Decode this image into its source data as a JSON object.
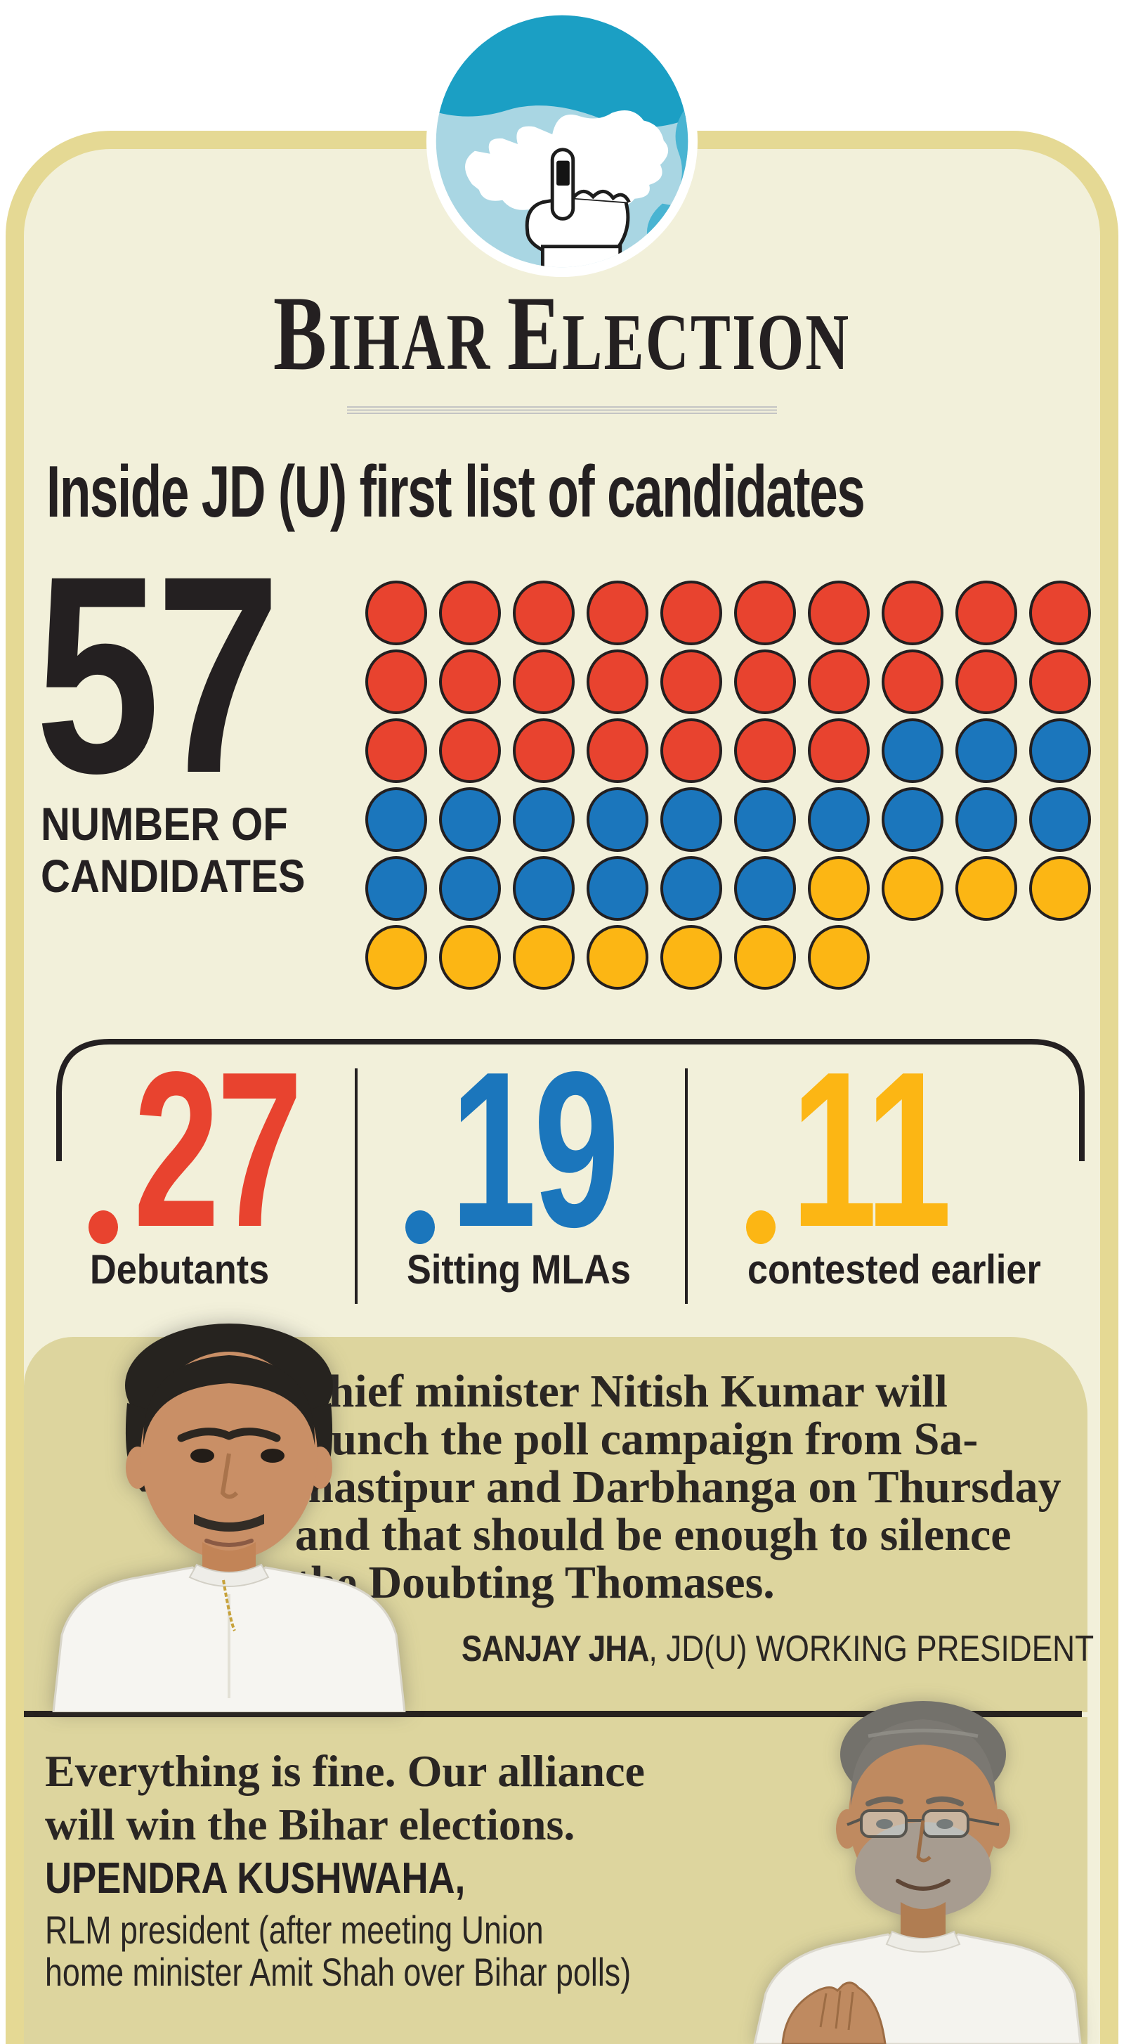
{
  "masthead": {
    "parts": [
      "B",
      "IHAR",
      "E",
      "LECTION"
    ],
    "full_title": "BIHAR ELECTION"
  },
  "headline": {
    "text": "Inside JD (U) first list of candidates"
  },
  "total": {
    "value": "57",
    "label_lines": [
      "NUMBER OF",
      "CANDIDATES"
    ]
  },
  "dot_matrix": {
    "palette": {
      "R": "#e8432f",
      "B": "#1b76bc",
      "Y": "#fcb614"
    },
    "outline": "#231f20",
    "rows": [
      "RRRRRRRRRR",
      "RRRRRRRRRR",
      "RRRRRRRBBB",
      "BBBBBBBBBB",
      "BBBBBBYYYY",
      "YYYYYYY"
    ]
  },
  "breakdown": {
    "items": [
      {
        "value": "27",
        "label": "Debutants",
        "color": "#e8432f"
      },
      {
        "value": "19",
        "label": "Sitting MLAs",
        "color": "#1b76bc"
      },
      {
        "value": "11",
        "label": "contested earlier",
        "color": "#fcb614"
      }
    ]
  },
  "quote1": {
    "lines": [
      "Chief minister Nitish Kumar will",
      "launch the poll campaign from Sa-",
      "mastipur and Darbhanga on Thursday",
      "and that should be enough to silence",
      "the Doubting Thomases."
    ],
    "name": "SANJAY JHA",
    "role": ", JD(U) WORKING PRESIDENT"
  },
  "quote2": {
    "lines": [
      "Everything is fine. Our alliance",
      "will win the Bihar elections."
    ],
    "name": "UPENDRA KUSHWAHA,",
    "role_lines": [
      "RLM president (after meeting Union",
      "home minister Amit Shah over Bihar polls)"
    ]
  },
  "colors": {
    "card_border": "#e5d994",
    "card_background": "#f2f0da",
    "quote_box": "#ddd59e",
    "text_dark": "#242021",
    "red": "#e8432f",
    "blue": "#1b76bc",
    "yellow": "#fcb614",
    "icon_teal_dark": "#1b9fc4",
    "icon_teal_light": "#a9d6e3",
    "icon_teal_mid": "#49b4d2"
  },
  "chart_data": {
    "type": "pictogram",
    "title": "Inside JD (U) first list of candidates",
    "total": 57,
    "total_label": "NUMBER OF CANDIDATES",
    "unit": "candidates",
    "grid_columns": 10,
    "categories": [
      "Debutants",
      "Sitting MLAs",
      "contested earlier"
    ],
    "values": [
      27,
      19,
      11
    ],
    "colors": [
      "#e8432f",
      "#1b76bc",
      "#fcb614"
    ],
    "row_pattern": [
      "RRRRRRRRRR",
      "RRRRRRRRRR",
      "RRRRRRRBBB",
      "BBBBBBBBBB",
      "BBBBBBYYYY",
      "YYYYYYY"
    ],
    "legend_position": "below"
  }
}
